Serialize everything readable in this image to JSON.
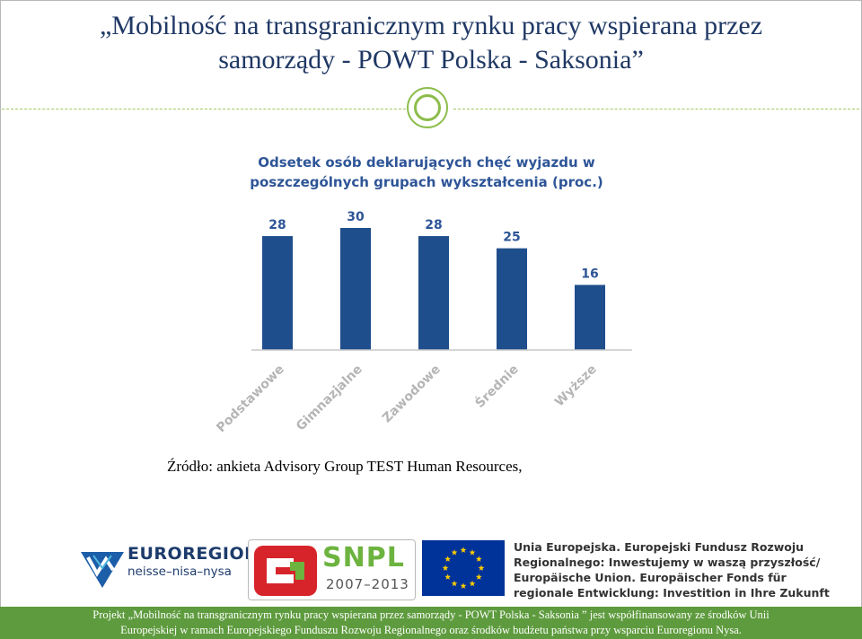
{
  "slide": {
    "title_line1": "„Mobilność na transgranicznym rynku pracy wspierana przez",
    "title_line2": "samorządy -  POWT Polska - Saksonia”"
  },
  "chart_data": {
    "type": "bar",
    "title_line1": "Odsetek osób deklarujących chęć wyjazdu w",
    "title_line2": "poszczególnych grupach wykształcenia (proc.)",
    "categories": [
      "Podstawowe",
      "Gimnazjalne",
      "Zawodowe",
      "Średnie",
      "Wyższe"
    ],
    "values": [
      28,
      30,
      28,
      25,
      16
    ],
    "ylim": [
      0,
      30
    ],
    "bar_color": "#1f4e8c",
    "label_color": "#2e5597",
    "grid": false,
    "xlabel": "",
    "ylabel": ""
  },
  "source": "Źródło: ankieta Advisory Group TEST Human Resources,",
  "logos": {
    "euroregion_name": "EUROREGION",
    "euroregion_sub": "neisse–nisa–nysa",
    "snpl_name": "SNPL",
    "snpl_years": "2007–2013",
    "eu_lines": [
      "Unia Europejska. Europejski Fundusz Rozwoju",
      "Regionalnego: Inwestujemy w waszą przyszłość/",
      "Europäische Union. Europäischer Fonds für",
      "regionale Entwicklung: Investition in Ihre Zukunft"
    ]
  },
  "footer": {
    "line1": "Projekt „Mobilność na transgranicznym rynku pracy wspierana przez samorządy - POWT  Polska - Saksonia ” jest współfinansowany ze środków Unii",
    "line2": "Europejskiej w ramach Europejskiego Funduszu Rozwoju Regionalnego oraz środków budżetu państwa  przy wsparciu Euroregionu Nysa."
  },
  "colors": {
    "title": "#1f3864",
    "accent_green": "#8cbd4a",
    "footer_bg": "#5e9b3e",
    "eu_blue": "#003399",
    "eu_star": "#ffcc00"
  }
}
